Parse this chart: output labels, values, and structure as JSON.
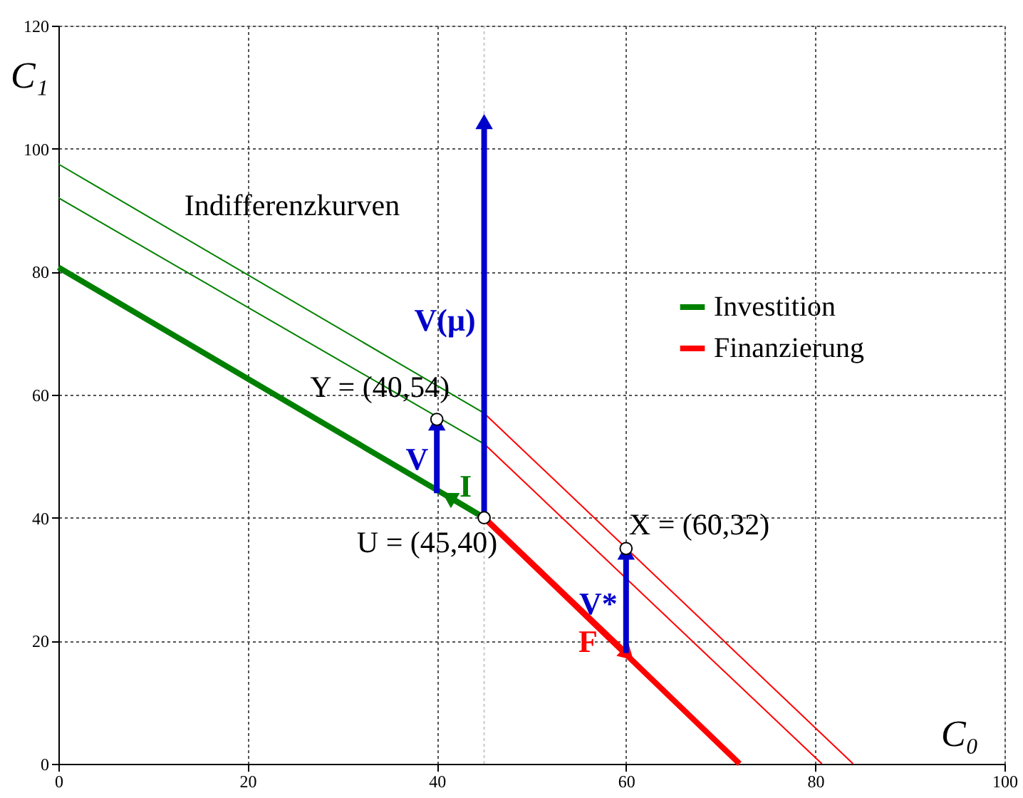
{
  "chart_data": {
    "type": "line",
    "xlabel": "C₀",
    "ylabel": "C₁",
    "xlim": [
      0,
      100
    ],
    "xticks": [
      0,
      20,
      40,
      60,
      80,
      100
    ],
    "ylim": [
      0,
      120
    ],
    "yticks": [
      0,
      20,
      40,
      60,
      80,
      100,
      120
    ],
    "grid": true,
    "legend": "right",
    "line_style": "solid",
    "series": [
      {
        "name": "Investition",
        "color": "#008000",
        "x": [
          0,
          45
        ],
        "values": [
          80.7,
          40
        ]
      },
      {
        "name": "Finanzierung",
        "color": "#ff0000",
        "x": [
          45,
          72
        ],
        "values": [
          40,
          0
        ]
      },
      {
        "color": "#008000",
        "x": [
          0,
          45
        ],
        "values": [
          97.5,
          57
        ]
      },
      {
        "color": "#ff0000",
        "x": [
          45,
          84
        ],
        "values": [
          57,
          0
        ]
      },
      {
        "color": "#008000",
        "x": [
          0,
          45
        ],
        "values": [
          92,
          52
        ]
      },
      {
        "color": "#ff0000",
        "x": [
          45,
          80.7
        ],
        "values": [
          52,
          0
        ]
      },
      {
        "name": "I",
        "color": "#008000",
        "x": [
          45,
          41.5
        ],
        "values": [
          40,
          43.2
        ],
        "marker": "triangle"
      },
      {
        "name": "F",
        "color": "#ff0000",
        "x": [
          45,
          60
        ],
        "values": [
          40,
          18
        ],
        "marker": "triangle"
      },
      {
        "name": "V",
        "color": "#0000cc",
        "x": [
          40,
          40
        ],
        "values": [
          44,
          55
        ],
        "marker": "triangle"
      },
      {
        "name": "V(μ)",
        "color": "#0000cc",
        "x": [
          45,
          45
        ],
        "values": [
          40,
          104
        ],
        "marker": "triangle"
      },
      {
        "name": "V*",
        "color": "#0000cc",
        "x": [
          60,
          60
        ],
        "values": [
          18,
          34
        ],
        "marker": "triangle"
      },
      {
        "type": "scatter",
        "color": "#000000",
        "x": [
          45,
          40,
          60
        ],
        "values": [
          40,
          56,
          35
        ],
        "marker": "circle"
      }
    ],
    "ref_lines": [
      {
        "axis": "x",
        "value": 45,
        "color": "#c8c8c8",
        "line_style": "dotted"
      }
    ],
    "annotations": [
      "Indifferenzkurven",
      {
        "text": "Y = (40,54)",
        "x": 40,
        "y": 56
      },
      {
        "text": "U = (45,40)",
        "x": 45,
        "y": 40
      },
      {
        "text": "X = (60,32)",
        "x": 60,
        "y": 35
      }
    ]
  }
}
